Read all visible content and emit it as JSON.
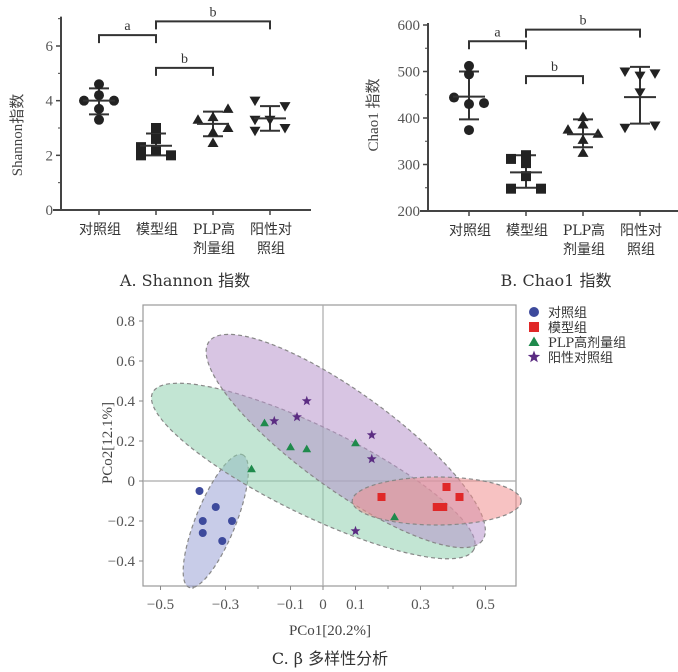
{
  "chart_data": [
    {
      "id": "A",
      "type": "scatter",
      "subtype": "dot-plot-with-mean-sd",
      "caption": "A. Shannon 指数",
      "ylabel": "Shannon指数",
      "xlabel": "",
      "ylim": [
        0,
        7
      ],
      "yticks": [
        0,
        2,
        4,
        6
      ],
      "categories": [
        {
          "line1": "对照组",
          "line2": ""
        },
        {
          "line1": "模型组",
          "line2": ""
        },
        {
          "line1": "PLP高",
          "line2": "剂量组"
        },
        {
          "line1": "阳性对",
          "line2": "照组"
        }
      ],
      "series": [
        {
          "name": "对照组",
          "marker": "circle",
          "values": [
            4.6,
            4.2,
            4.0,
            4.0,
            3.7,
            3.3
          ],
          "offsets": [
            0,
            0,
            -1,
            1,
            0,
            0
          ],
          "mean": 4.0,
          "sd_upper": 4.45,
          "sd_lower": 3.5
        },
        {
          "name": "模型组",
          "marker": "square",
          "values": [
            3.0,
            2.6,
            2.3,
            2.2,
            2.0,
            2.0
          ],
          "offsets": [
            0,
            0,
            -1,
            0,
            -1,
            1
          ],
          "mean": 2.35,
          "sd_upper": 2.8,
          "sd_lower": 2.0
        },
        {
          "name": "PLP高剂量组",
          "marker": "triangle-up",
          "values": [
            3.7,
            3.4,
            3.3,
            3.0,
            2.85,
            2.45
          ],
          "offsets": [
            1,
            0,
            -1,
            1,
            0,
            0
          ],
          "mean": 3.15,
          "sd_upper": 3.6,
          "sd_lower": 2.7
        },
        {
          "name": "阳性对照组",
          "marker": "triangle-down",
          "values": [
            4.0,
            3.8,
            3.3,
            3.3,
            3.0,
            2.9
          ],
          "offsets": [
            -1,
            1,
            -1,
            0,
            1,
            -1
          ],
          "mean": 3.35,
          "sd_upper": 3.8,
          "sd_lower": 2.9
        }
      ],
      "significance": [
        {
          "from": 0,
          "to": 1,
          "label": "a",
          "level": 6.4
        },
        {
          "from": 1,
          "to": 3,
          "label": "b",
          "level": 6.9
        },
        {
          "from": 1,
          "to": 2,
          "label": "b",
          "level": 5.2
        }
      ]
    },
    {
      "id": "B",
      "type": "scatter",
      "subtype": "dot-plot-with-mean-sd",
      "caption": "B. Chao1 指数",
      "ylabel": "Chao1 指数",
      "xlabel": "",
      "ylim": [
        200,
        600
      ],
      "yticks": [
        200,
        300,
        400,
        500,
        600
      ],
      "categories": [
        {
          "line1": "对照组",
          "line2": ""
        },
        {
          "line1": "模型组",
          "line2": ""
        },
        {
          "line1": "PLP高",
          "line2": "剂量组"
        },
        {
          "line1": "阳性对",
          "line2": "照组"
        }
      ],
      "series": [
        {
          "name": "对照组",
          "marker": "circle",
          "values": [
            512,
            494,
            444,
            432,
            430,
            374
          ],
          "offsets": [
            0,
            0,
            -1,
            1,
            0,
            0
          ],
          "mean": 446,
          "sd_upper": 500,
          "sd_lower": 397
        },
        {
          "name": "模型组",
          "marker": "square",
          "values": [
            320,
            312,
            303,
            275,
            248,
            248
          ],
          "offsets": [
            0,
            -1,
            0,
            0,
            -1,
            1
          ],
          "mean": 283,
          "sd_upper": 320,
          "sd_lower": 250
        },
        {
          "name": "PLP高剂量组",
          "marker": "triangle-up",
          "values": [
            402,
            386,
            375,
            366,
            353,
            325
          ],
          "offsets": [
            0,
            0,
            -1,
            1,
            0,
            0
          ],
          "mean": 365,
          "sd_upper": 397,
          "sd_lower": 337
        },
        {
          "name": "阳性对照组",
          "marker": "triangle-down",
          "values": [
            500,
            496,
            491,
            455,
            379,
            384
          ],
          "offsets": [
            -1,
            1,
            0,
            0,
            -1,
            1
          ],
          "mean": 445,
          "sd_upper": 510,
          "sd_lower": 388
        }
      ],
      "significance": [
        {
          "from": 0,
          "to": 1,
          "label": "a",
          "level": 565
        },
        {
          "from": 1,
          "to": 3,
          "label": "b",
          "level": 590
        },
        {
          "from": 1,
          "to": 2,
          "label": "b",
          "level": 490
        }
      ]
    },
    {
      "id": "C",
      "type": "scatter",
      "subtype": "pcoa",
      "caption": "C. β 多样性分析",
      "xlabel": "PCo1[20.2%]",
      "ylabel": "PCo2[12.1%]",
      "xlim": [
        -0.6,
        0.62
      ],
      "ylim": [
        -0.53,
        0.88
      ],
      "xticks": [
        -0.5,
        -0.3,
        -0.1,
        0,
        0.1,
        0.3,
        0.5
      ],
      "xtick_labels": [
        "−0.5",
        "−0.3",
        "−0.1",
        "0",
        "0.1",
        "0.3",
        "0.5"
      ],
      "yticks": [
        -0.4,
        -0.2,
        0,
        0.2,
        0.4,
        0.6,
        0.8
      ],
      "ytick_labels": [
        "−0.4",
        "−0.2",
        "0",
        "0.2",
        "0.4",
        "0.6",
        "0.8"
      ],
      "legend_position": "top-right-outside",
      "series": [
        {
          "name": "对照组",
          "marker": "circle",
          "color": "#3d4a9c",
          "fill": "#9aa3d6",
          "points": [
            [
              -0.38,
              -0.05
            ],
            [
              -0.33,
              -0.13
            ],
            [
              -0.37,
              -0.2
            ],
            [
              -0.28,
              -0.2
            ],
            [
              -0.37,
              -0.26
            ],
            [
              -0.31,
              -0.3
            ]
          ],
          "ellipse": {
            "cx": -0.33,
            "cy": -0.2,
            "rx": 0.22,
            "ry": 0.1,
            "angle": -68
          }
        },
        {
          "name": "模型组",
          "marker": "square",
          "color": "#e02828",
          "fill": "#f08f8f",
          "points": [
            [
              0.18,
              -0.08
            ],
            [
              0.38,
              -0.03
            ],
            [
              0.42,
              -0.08
            ],
            [
              0.35,
              -0.13
            ],
            [
              0.36,
              -0.13
            ],
            [
              0.37,
              -0.13
            ]
          ],
          "ellipse": {
            "cx": 0.35,
            "cy": -0.1,
            "rx": 0.26,
            "ry": 0.12,
            "angle": 0
          }
        },
        {
          "name": "PLP高剂量组",
          "marker": "triangle-up",
          "color": "#1f8a4c",
          "fill": "#8fd0ae",
          "points": [
            [
              -0.22,
              0.06
            ],
            [
              -0.18,
              0.29
            ],
            [
              -0.1,
              0.17
            ],
            [
              -0.05,
              0.16
            ],
            [
              0.1,
              0.19
            ],
            [
              0.22,
              -0.18
            ]
          ],
          "ellipse": {
            "cx": -0.03,
            "cy": 0.05,
            "rx": 0.55,
            "ry": 0.22,
            "angle": 26
          }
        },
        {
          "name": "阳性对照组",
          "marker": "star",
          "color": "#5b2c82",
          "fill": "#b896cc",
          "points": [
            [
              -0.05,
              0.4
            ],
            [
              -0.08,
              0.32
            ],
            [
              -0.15,
              0.3
            ],
            [
              0.15,
              0.23
            ],
            [
              0.15,
              0.11
            ],
            [
              0.1,
              -0.25
            ]
          ],
          "ellipse": {
            "cx": 0.07,
            "cy": 0.2,
            "rx": 0.52,
            "ry": 0.24,
            "angle": 36
          }
        }
      ]
    }
  ],
  "legend": {
    "items": [
      {
        "label": "对照组"
      },
      {
        "label": "模型组"
      },
      {
        "label": "PLP高剂量组"
      },
      {
        "label": "阳性对照组"
      }
    ]
  }
}
